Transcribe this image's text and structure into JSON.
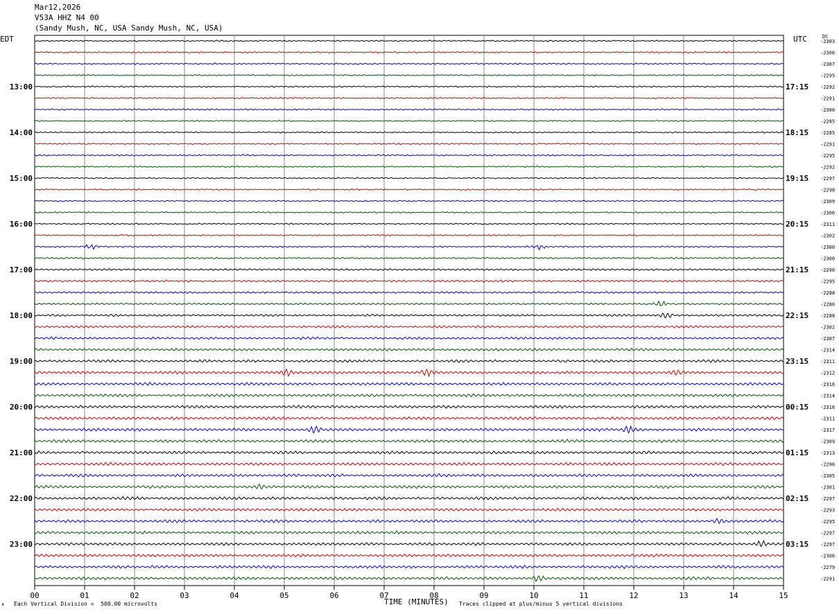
{
  "header": {
    "date": "Mar12,2026",
    "station": "V53A HHZ N4 00",
    "location": "(Sandy Mush, NC, USA Sandy Mush, NC, USA)"
  },
  "left_tz": "EDT",
  "right_tz": "UTC",
  "dc_label": "DC",
  "footer": {
    "scale": "Each Vertical Division =  500.00 microvolts",
    "xlabel": "TIME (MINUTES)",
    "clip_note": "Traces clipped at plus/minus 5 vertical divisions",
    "corner": "ᴀ"
  },
  "chart_data": {
    "type": "line",
    "title": "",
    "xlabel": "TIME (MINUTES)",
    "xlim": [
      0,
      15
    ],
    "x_ticks": [
      "00",
      "01",
      "02",
      "03",
      "04",
      "05",
      "06",
      "07",
      "08",
      "09",
      "10",
      "11",
      "12",
      "13",
      "14",
      "15"
    ],
    "row_colors": [
      "#000000",
      "#cc0000",
      "#0000cc",
      "#005500"
    ],
    "left_labels": [
      "13:00",
      "14:00",
      "15:00",
      "16:00",
      "17:00",
      "18:00",
      "19:00",
      "20:00",
      "21:00",
      "22:00",
      "23:00"
    ],
    "right_labels": [
      "17:15",
      "18:15",
      "19:15",
      "20:15",
      "21:15",
      "22:15",
      "23:15",
      "00:15",
      "01:15",
      "02:15",
      "03:15"
    ],
    "dc_offsets": [
      "-2303",
      "-2306",
      "-2307",
      "-2295",
      "-2292",
      "-2291",
      "-2300",
      "-2285",
      "-2285",
      "-2291",
      "-2295",
      "-2292",
      "-2297",
      "-2298",
      "-2309",
      "-2306",
      "-2311",
      "-2302",
      "-2300",
      "-2300",
      "-2296",
      "-2295",
      "-2288",
      "-2280",
      "-2288",
      "-2302",
      "-2307",
      "-2314",
      "-2311",
      "-2312",
      "-2316",
      "-2314",
      "-2316",
      "-2311",
      "-2317",
      "-2309",
      "-2313",
      "-2296",
      "-2305",
      "-2301",
      "-2297",
      "-2293",
      "-2295",
      "-2297",
      "-2297",
      "-2306",
      "-2279",
      "-2291"
    ],
    "row_amplitude_levels": [
      1,
      1,
      1,
      1,
      1,
      1,
      1,
      1,
      1,
      1,
      1,
      1,
      1,
      1,
      1,
      1,
      1,
      1,
      1.2,
      1.5,
      2,
      2,
      2,
      2,
      2.5,
      3,
      3,
      3.5,
      3.5,
      4,
      4,
      4,
      4,
      4,
      4,
      4,
      4,
      4,
      4,
      4,
      4,
      4,
      4,
      4,
      4,
      4,
      4,
      4
    ]
  }
}
